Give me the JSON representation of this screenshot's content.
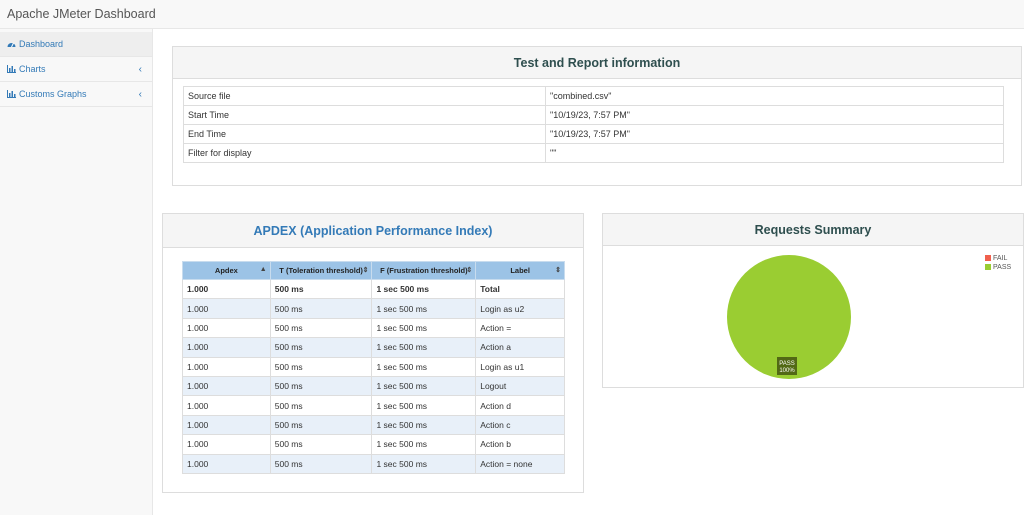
{
  "app": {
    "title": "Apache JMeter Dashboard"
  },
  "sidebar": {
    "items": [
      {
        "label": "Dashboard",
        "icon": "dashboard-icon",
        "active": true
      },
      {
        "label": "Charts",
        "icon": "bar-chart-icon",
        "chevron": "‹"
      },
      {
        "label": "Customs Graphs",
        "icon": "bar-chart-icon",
        "chevron": "‹"
      }
    ]
  },
  "report_info": {
    "title": "Test and Report information",
    "rows": [
      {
        "label": "Source file",
        "value": "\"combined.csv\""
      },
      {
        "label": "Start Time",
        "value": "\"10/19/23, 7:57 PM\""
      },
      {
        "label": "End Time",
        "value": "\"10/19/23, 7:57 PM\""
      },
      {
        "label": "Filter for display",
        "value": "\"\""
      }
    ]
  },
  "apdex": {
    "title": "APDEX (Application Performance Index)",
    "columns": [
      "Apdex",
      "T (Toleration threshold)",
      "F (Frustration threshold)",
      "Label"
    ],
    "sort_icons": [
      "▲",
      "⇕",
      "⇕",
      "⇕"
    ],
    "rows": [
      [
        "1.000",
        "500 ms",
        "1 sec 500 ms",
        "Total"
      ],
      [
        "1.000",
        "500 ms",
        "1 sec 500 ms",
        "Login as u2"
      ],
      [
        "1.000",
        "500 ms",
        "1 sec 500 ms",
        "Action ="
      ],
      [
        "1.000",
        "500 ms",
        "1 sec 500 ms",
        "Action a"
      ],
      [
        "1.000",
        "500 ms",
        "1 sec 500 ms",
        "Login as u1"
      ],
      [
        "1.000",
        "500 ms",
        "1 sec 500 ms",
        "Logout"
      ],
      [
        "1.000",
        "500 ms",
        "1 sec 500 ms",
        "Action d"
      ],
      [
        "1.000",
        "500 ms",
        "1 sec 500 ms",
        "Action c"
      ],
      [
        "1.000",
        "500 ms",
        "1 sec 500 ms",
        "Action b"
      ],
      [
        "1.000",
        "500 ms",
        "1 sec 500 ms",
        "Action = none"
      ]
    ]
  },
  "requests_summary": {
    "title": "Requests Summary",
    "legend": [
      {
        "label": "FAIL",
        "color": "#f0604d"
      },
      {
        "label": "PASS",
        "color": "#9acd32"
      }
    ],
    "slice_label": "PASS",
    "slice_percent": "100%"
  },
  "chart_data": {
    "type": "pie",
    "title": "Requests Summary",
    "categories": [
      "FAIL",
      "PASS"
    ],
    "values": [
      0,
      100
    ],
    "colors": [
      "#f0604d",
      "#9acd32"
    ],
    "legend_position": "top-right"
  }
}
